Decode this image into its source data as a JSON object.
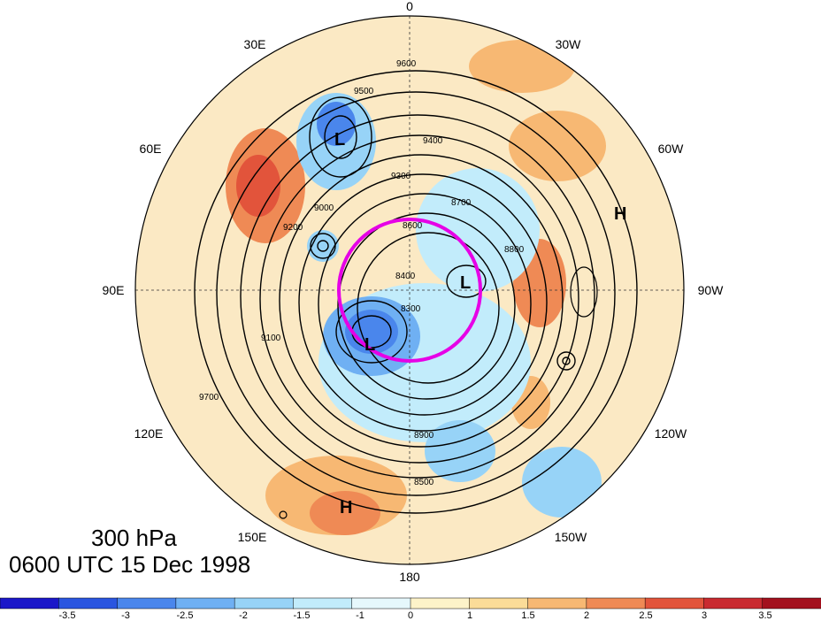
{
  "map": {
    "longitude_labels": [
      "0",
      "30W",
      "60W",
      "90W",
      "120W",
      "150W",
      "180",
      "150E",
      "120E",
      "90E",
      "60E",
      "30E"
    ],
    "contour_labels": [
      "9600",
      "9500",
      "9400",
      "9300",
      "9200",
      "9100",
      "9000",
      "8900",
      "8800",
      "8700",
      "8600",
      "8500",
      "8400",
      "8300",
      "9700"
    ],
    "pressure_centers": [
      "L",
      "L",
      "L",
      "H",
      "H"
    ]
  },
  "caption": {
    "level": "300 hPa",
    "time": "0600 UTC 15 Dec 1998"
  },
  "colorbar": {
    "tick_labels": [
      "-3.5",
      "-3",
      "-2.5",
      "-2",
      "-1.5",
      "-1",
      "0",
      "1",
      "1.5",
      "2",
      "2.5",
      "3",
      "3.5"
    ],
    "colors": [
      "#1b17c9",
      "#2a55e0",
      "#4a86ec",
      "#6fb0f3",
      "#97d3f7",
      "#c2ecfb",
      "#e6f8fc",
      "#fdf3c9",
      "#fbdc98",
      "#f7b873",
      "#ef8a55",
      "#e2543b",
      "#c92a30",
      "#a3111e"
    ]
  }
}
